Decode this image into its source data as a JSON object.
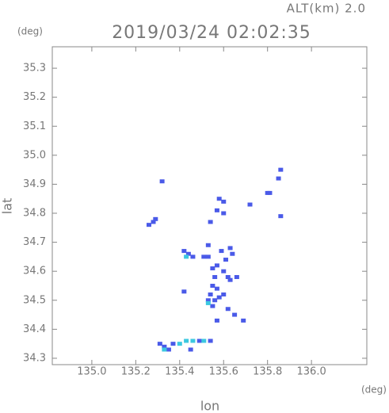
{
  "chart_data": {
    "type": "scatter",
    "title": "2019/03/24 02:02:35",
    "subtitle": "ALT(km) 2.0",
    "xlabel": "lon",
    "ylabel": "lat",
    "xunit": "(deg)",
    "yunit": "(deg)",
    "xlim": [
      134.82,
      136.252
    ],
    "ylim": [
      34.278,
      35.374
    ],
    "xticks": [
      {
        "value": 135.0,
        "label": "135.0"
      },
      135.2,
      135.4,
      135.6,
      135.8,
      {
        "value": 136.0,
        "label": "136.0"
      }
    ],
    "yticks": [
      34.3,
      34.4,
      34.5,
      34.6,
      34.7,
      34.8,
      34.9,
      {
        "value": 35.0,
        "label": "35.0"
      },
      35.1,
      35.2,
      35.3
    ],
    "series": [
      {
        "color": "#4a5ae8",
        "x": [
          135.32,
          135.26,
          135.28,
          135.29,
          135.86,
          135.85,
          135.8,
          135.81,
          135.86,
          135.58,
          135.6,
          135.6,
          135.57,
          135.54,
          135.72,
          135.53,
          135.42,
          135.44,
          135.46,
          135.51,
          135.53,
          135.59,
          135.63,
          135.64,
          135.61,
          135.57,
          135.6,
          135.62,
          135.55,
          135.56,
          135.55,
          135.57,
          135.54,
          135.56,
          135.53,
          135.55,
          135.58,
          135.6,
          135.63,
          135.66,
          135.42,
          135.62,
          135.65,
          135.69,
          135.57,
          135.31,
          135.33,
          135.35,
          135.37,
          135.49,
          135.54,
          135.45
        ],
        "y": [
          34.91,
          34.76,
          34.77,
          34.78,
          34.95,
          34.92,
          34.87,
          34.87,
          34.79,
          34.85,
          34.84,
          34.8,
          34.81,
          34.77,
          34.83,
          34.69,
          34.67,
          34.66,
          34.65,
          34.65,
          34.65,
          34.67,
          34.68,
          34.66,
          34.64,
          34.62,
          34.6,
          34.58,
          34.61,
          34.58,
          34.55,
          34.54,
          34.52,
          34.5,
          34.5,
          34.48,
          34.51,
          34.52,
          34.57,
          34.58,
          34.53,
          34.47,
          34.45,
          34.43,
          34.43,
          34.35,
          34.34,
          34.33,
          34.35,
          34.36,
          34.36,
          34.33
        ]
      },
      {
        "color": "#3cc8e0",
        "x": [
          135.43,
          135.53,
          135.33,
          135.4,
          135.43,
          135.46,
          135.51
        ],
        "y": [
          34.65,
          34.49,
          34.33,
          34.35,
          34.36,
          34.36,
          34.36
        ]
      }
    ]
  }
}
